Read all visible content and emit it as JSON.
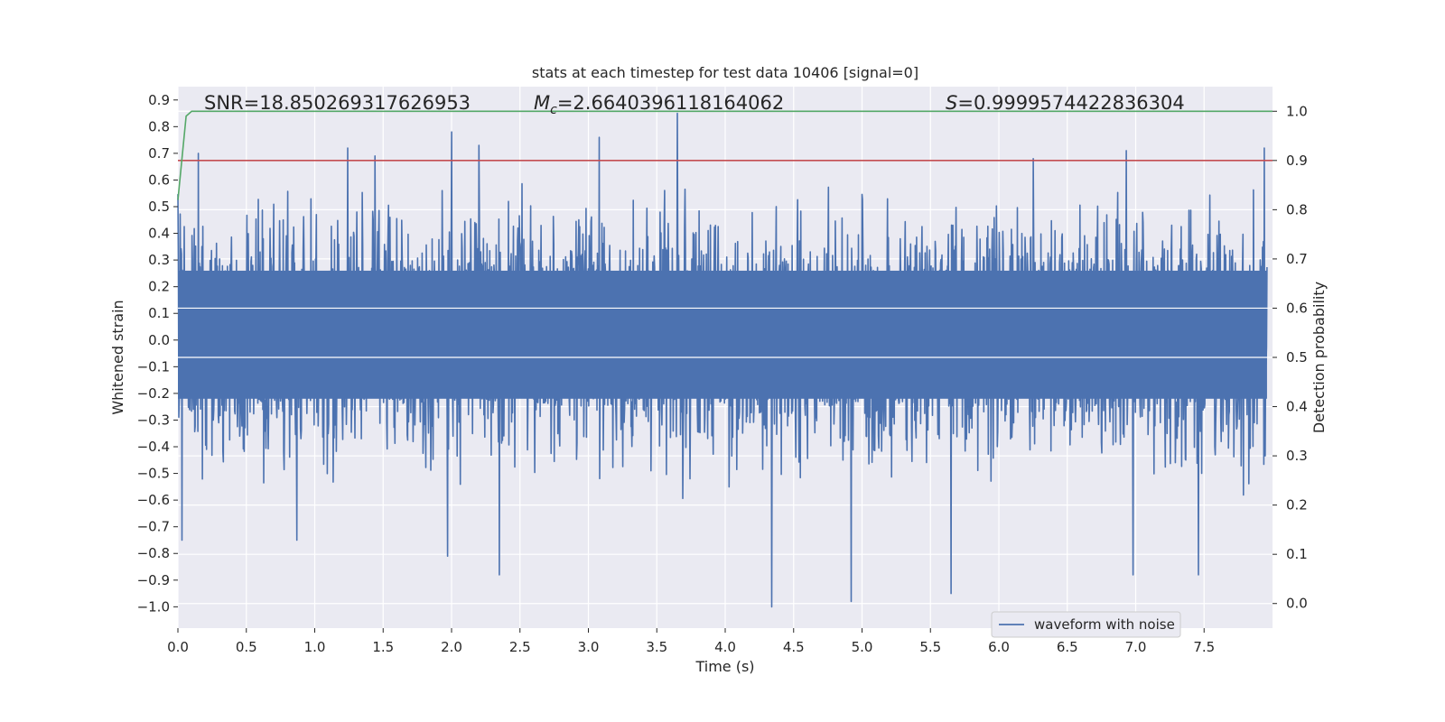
{
  "chart_data": {
    "type": "line",
    "title": "stats at each timestep for test data 10406 [signal=0]",
    "xlabel": "Time (s)",
    "ylabel_left": "Whitened strain",
    "ylabel_right": "Detection probability",
    "xlim": [
      0.0,
      8.0
    ],
    "ylim_left": [
      -1.08,
      0.95
    ],
    "ylim_right": [
      -0.05,
      1.05
    ],
    "x_ticks": [
      "0.0",
      "0.5",
      "1.0",
      "1.5",
      "2.0",
      "2.5",
      "3.0",
      "3.5",
      "4.0",
      "4.5",
      "5.0",
      "5.5",
      "6.0",
      "6.5",
      "7.0",
      "7.5"
    ],
    "y_ticks_left": [
      "0.9",
      "0.8",
      "0.7",
      "0.6",
      "0.5",
      "0.4",
      "0.3",
      "0.2",
      "0.1",
      "0.0",
      "−0.1",
      "−0.2",
      "−0.3",
      "−0.4",
      "−0.5",
      "−0.6",
      "−0.7",
      "−0.8",
      "−0.9",
      "−1.0"
    ],
    "y_ticks_right": [
      "1.0",
      "0.9",
      "0.8",
      "0.7",
      "0.6",
      "0.5",
      "0.4",
      "0.3",
      "0.2",
      "0.1",
      "0.0"
    ],
    "grid": true,
    "legend_position": "lower-right",
    "annotations": {
      "snr": "SNR=18.850269317626953",
      "mc_symbol": "M",
      "mc_sub": "c",
      "mc_value": "=2.6640396118164062",
      "s_symbol": "S",
      "s_value": "=0.9999574422836304"
    },
    "series": [
      {
        "name": "waveform with noise",
        "axis": "left",
        "color": "#4c72b0",
        "description_peaks_positive": [
          {
            "x": 0.15,
            "y": 0.7
          },
          {
            "x": 1.24,
            "y": 0.72
          },
          {
            "x": 1.44,
            "y": 0.69
          },
          {
            "x": 2.0,
            "y": 0.78
          },
          {
            "x": 2.2,
            "y": 0.73
          },
          {
            "x": 3.08,
            "y": 0.76
          },
          {
            "x": 3.65,
            "y": 0.85
          },
          {
            "x": 6.25,
            "y": 0.68
          },
          {
            "x": 6.93,
            "y": 0.71
          },
          {
            "x": 7.94,
            "y": 0.72
          }
        ],
        "description_peaks_negative": [
          {
            "x": 0.03,
            "y": -0.75
          },
          {
            "x": 0.87,
            "y": -0.75
          },
          {
            "x": 1.97,
            "y": -0.81
          },
          {
            "x": 2.35,
            "y": -0.88
          },
          {
            "x": 4.34,
            "y": -1.0
          },
          {
            "x": 4.92,
            "y": -0.98
          },
          {
            "x": 5.65,
            "y": -0.95
          },
          {
            "x": 6.98,
            "y": -0.88
          },
          {
            "x": 7.46,
            "y": -0.88
          }
        ]
      },
      {
        "name": "",
        "axis": "right",
        "color": "#c44e52",
        "x": [
          0.0,
          8.0
        ],
        "y": [
          0.9,
          0.9
        ]
      },
      {
        "name": "",
        "axis": "right",
        "color": "#55a868",
        "x": [
          0.0,
          0.06,
          0.1,
          0.15,
          0.3,
          8.0
        ],
        "y": [
          0.82,
          0.99,
          1.0,
          1.0,
          1.0,
          1.0
        ]
      }
    ]
  }
}
